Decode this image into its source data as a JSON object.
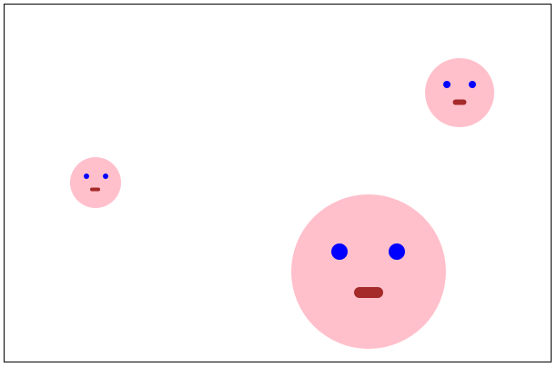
{
  "scene": {
    "background": "#ffffff",
    "border_color": "#000000",
    "face_color": "#ffc0cb",
    "eye_color": "#0000ff",
    "mouth_color": "#a52a2a"
  },
  "faces": [
    {
      "id": "small"
    },
    {
      "id": "medium"
    },
    {
      "id": "large"
    }
  ]
}
